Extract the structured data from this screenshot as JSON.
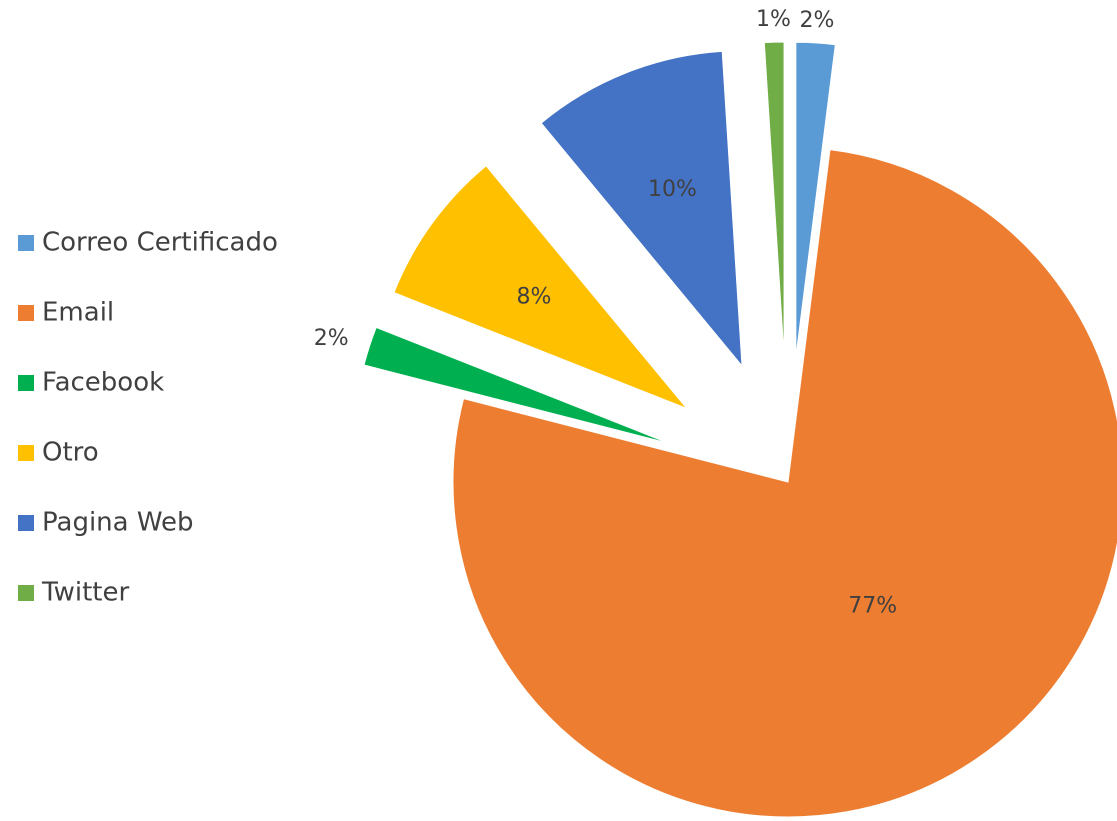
{
  "chart_data": {
    "type": "pie",
    "categories": [
      "Correo Certificado",
      "Email",
      "Facebook",
      "Otro",
      "Pagina Web",
      "Twitter"
    ],
    "values": [
      2,
      77,
      2,
      8,
      10,
      1
    ],
    "value_labels": [
      "2%",
      "77%",
      "2%",
      "8%",
      "10%",
      "1%"
    ],
    "colors": [
      "#5b9bd5",
      "#ed7d31",
      "#00b050",
      "#ffc000",
      "#4472c4",
      "#70ad47"
    ],
    "legend": "left"
  }
}
